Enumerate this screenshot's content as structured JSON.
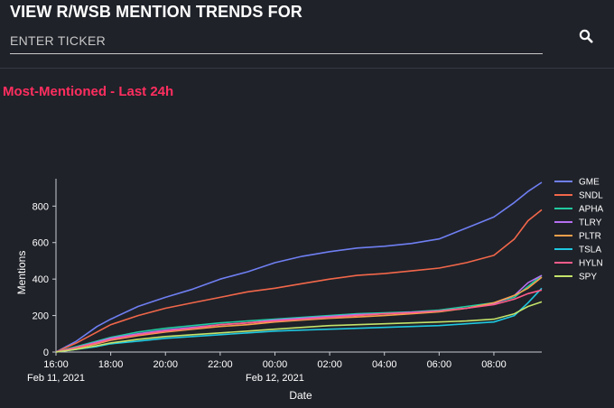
{
  "header": {
    "title": "VIEW R/WSB MENTION TRENDS FOR",
    "search_placeholder": "ENTER TICKER",
    "search_value": "",
    "search_icon": "search-icon"
  },
  "section": {
    "title": "Most-Mentioned - Last 24h"
  },
  "colors": {
    "background": "#1f2229",
    "accent": "#ff2e5f"
  },
  "chart_data": {
    "type": "line",
    "xlabel": "Date",
    "ylabel": "Mentions",
    "x_ticks": [
      "16:00",
      "18:00",
      "20:00",
      "22:00",
      "00:00",
      "02:00",
      "04:00",
      "06:00",
      "08:00"
    ],
    "x_tick_sublabels": {
      "16:00": "Feb 11, 2021",
      "00:00": "Feb 12, 2021"
    },
    "x_range": [
      "2021-02-11 16:00",
      "2021-02-12 09:45"
    ],
    "y_ticks": [
      0,
      200,
      400,
      600,
      800
    ],
    "ylim": [
      0,
      950
    ],
    "grid": false,
    "legend_position": "top-right",
    "series": [
      {
        "name": "GME",
        "color": "#6f7ff2",
        "x": [
          "2021-02-11 16:00",
          "2021-02-11 16:45",
          "2021-02-11 17:30",
          "2021-02-11 18:00",
          "2021-02-11 19:00",
          "2021-02-11 20:00",
          "2021-02-11 21:00",
          "2021-02-11 22:00",
          "2021-02-11 23:00",
          "2021-02-12 00:00",
          "2021-02-12 01:00",
          "2021-02-12 02:00",
          "2021-02-12 03:00",
          "2021-02-12 04:00",
          "2021-02-12 05:00",
          "2021-02-12 06:00",
          "2021-02-12 07:00",
          "2021-02-12 08:00",
          "2021-02-12 08:45",
          "2021-02-12 09:15",
          "2021-02-12 09:45"
        ],
        "y": [
          0,
          60,
          140,
          180,
          250,
          300,
          345,
          400,
          440,
          490,
          525,
          550,
          570,
          580,
          595,
          620,
          680,
          740,
          820,
          880,
          930
        ]
      },
      {
        "name": "SNDL",
        "color": "#f2674a",
        "x": [
          "2021-02-11 16:00",
          "2021-02-11 16:45",
          "2021-02-11 17:30",
          "2021-02-11 18:00",
          "2021-02-11 19:00",
          "2021-02-11 20:00",
          "2021-02-11 21:00",
          "2021-02-11 22:00",
          "2021-02-11 23:00",
          "2021-02-12 00:00",
          "2021-02-12 01:00",
          "2021-02-12 02:00",
          "2021-02-12 03:00",
          "2021-02-12 04:00",
          "2021-02-12 05:00",
          "2021-02-12 06:00",
          "2021-02-12 07:00",
          "2021-02-12 08:00",
          "2021-02-12 08:45",
          "2021-02-12 09:15",
          "2021-02-12 09:45"
        ],
        "y": [
          0,
          50,
          110,
          150,
          200,
          240,
          270,
          300,
          330,
          350,
          375,
          400,
          420,
          430,
          445,
          460,
          490,
          530,
          620,
          720,
          780
        ]
      },
      {
        "name": "APHA",
        "color": "#22c9a0",
        "x": [
          "2021-02-11 16:00",
          "2021-02-11 16:45",
          "2021-02-11 17:30",
          "2021-02-11 18:00",
          "2021-02-11 19:00",
          "2021-02-11 20:00",
          "2021-02-11 21:00",
          "2021-02-11 22:00",
          "2021-02-11 23:00",
          "2021-02-12 00:00",
          "2021-02-12 01:00",
          "2021-02-12 02:00",
          "2021-02-12 03:00",
          "2021-02-12 04:00",
          "2021-02-12 05:00",
          "2021-02-12 06:00",
          "2021-02-12 07:00",
          "2021-02-12 08:00",
          "2021-02-12 08:45",
          "2021-02-12 09:15",
          "2021-02-12 09:45"
        ],
        "y": [
          0,
          30,
          60,
          80,
          110,
          130,
          145,
          160,
          170,
          180,
          190,
          200,
          210,
          215,
          220,
          230,
          250,
          270,
          300,
          360,
          420
        ]
      },
      {
        "name": "TLRY",
        "color": "#b56ff0",
        "x": [
          "2021-02-11 16:00",
          "2021-02-11 16:45",
          "2021-02-11 17:30",
          "2021-02-11 18:00",
          "2021-02-11 19:00",
          "2021-02-11 20:00",
          "2021-02-11 21:00",
          "2021-02-11 22:00",
          "2021-02-11 23:00",
          "2021-02-12 00:00",
          "2021-02-12 01:00",
          "2021-02-12 02:00",
          "2021-02-12 03:00",
          "2021-02-12 04:00",
          "2021-02-12 05:00",
          "2021-02-12 06:00",
          "2021-02-12 07:00",
          "2021-02-12 08:00",
          "2021-02-12 08:45",
          "2021-02-12 09:15",
          "2021-02-12 09:45"
        ],
        "y": [
          0,
          25,
          55,
          75,
          100,
          120,
          135,
          150,
          160,
          175,
          185,
          195,
          205,
          210,
          218,
          225,
          240,
          265,
          310,
          380,
          420
        ]
      },
      {
        "name": "PLTR",
        "color": "#f5a04a",
        "x": [
          "2021-02-11 16:00",
          "2021-02-11 16:45",
          "2021-02-11 17:30",
          "2021-02-11 18:00",
          "2021-02-11 19:00",
          "2021-02-11 20:00",
          "2021-02-11 21:00",
          "2021-02-11 22:00",
          "2021-02-11 23:00",
          "2021-02-12 00:00",
          "2021-02-12 01:00",
          "2021-02-12 02:00",
          "2021-02-12 03:00",
          "2021-02-12 04:00",
          "2021-02-12 05:00",
          "2021-02-12 06:00",
          "2021-02-12 07:00",
          "2021-02-12 08:00",
          "2021-02-12 08:45",
          "2021-02-12 09:15",
          "2021-02-12 09:45"
        ],
        "y": [
          0,
          20,
          45,
          65,
          90,
          110,
          125,
          140,
          150,
          165,
          175,
          185,
          192,
          200,
          210,
          220,
          240,
          270,
          310,
          350,
          410
        ]
      },
      {
        "name": "TSLA",
        "color": "#1fc7e0",
        "x": [
          "2021-02-11 16:00",
          "2021-02-11 16:45",
          "2021-02-11 17:30",
          "2021-02-11 18:00",
          "2021-02-11 19:00",
          "2021-02-11 20:00",
          "2021-02-11 21:00",
          "2021-02-11 22:00",
          "2021-02-11 23:00",
          "2021-02-12 00:00",
          "2021-02-12 01:00",
          "2021-02-12 02:00",
          "2021-02-12 03:00",
          "2021-02-12 04:00",
          "2021-02-12 05:00",
          "2021-02-12 06:00",
          "2021-02-12 07:00",
          "2021-02-12 08:00",
          "2021-02-12 08:45",
          "2021-02-12 09:15",
          "2021-02-12 09:45"
        ],
        "y": [
          0,
          15,
          30,
          45,
          60,
          75,
          85,
          95,
          105,
          115,
          120,
          125,
          130,
          135,
          140,
          145,
          155,
          165,
          200,
          270,
          350
        ]
      },
      {
        "name": "HYLN",
        "color": "#ff5c8a",
        "x": [
          "2021-02-11 16:00",
          "2021-02-11 16:45",
          "2021-02-11 17:30",
          "2021-02-11 18:00",
          "2021-02-11 19:00",
          "2021-02-11 20:00",
          "2021-02-11 21:00",
          "2021-02-11 22:00",
          "2021-02-11 23:00",
          "2021-02-12 00:00",
          "2021-02-12 01:00",
          "2021-02-12 02:00",
          "2021-02-12 03:00",
          "2021-02-12 04:00",
          "2021-02-12 05:00",
          "2021-02-12 06:00",
          "2021-02-12 07:00",
          "2021-02-12 08:00",
          "2021-02-12 08:45",
          "2021-02-12 09:15",
          "2021-02-12 09:45"
        ],
        "y": [
          0,
          25,
          50,
          70,
          95,
          115,
          130,
          150,
          160,
          170,
          180,
          190,
          200,
          210,
          215,
          225,
          240,
          260,
          290,
          320,
          340
        ]
      },
      {
        "name": "SPY",
        "color": "#c4e36a",
        "x": [
          "2021-02-11 16:00",
          "2021-02-11 16:45",
          "2021-02-11 17:30",
          "2021-02-11 18:00",
          "2021-02-11 19:00",
          "2021-02-11 20:00",
          "2021-02-11 21:00",
          "2021-02-11 22:00",
          "2021-02-11 23:00",
          "2021-02-12 00:00",
          "2021-02-12 01:00",
          "2021-02-12 02:00",
          "2021-02-12 03:00",
          "2021-02-12 04:00",
          "2021-02-12 05:00",
          "2021-02-12 06:00",
          "2021-02-12 07:00",
          "2021-02-12 08:00",
          "2021-02-12 08:45",
          "2021-02-12 09:15",
          "2021-02-12 09:45"
        ],
        "y": [
          0,
          15,
          35,
          50,
          70,
          85,
          95,
          105,
          115,
          125,
          135,
          145,
          150,
          155,
          160,
          165,
          170,
          180,
          210,
          250,
          275
        ]
      }
    ]
  }
}
